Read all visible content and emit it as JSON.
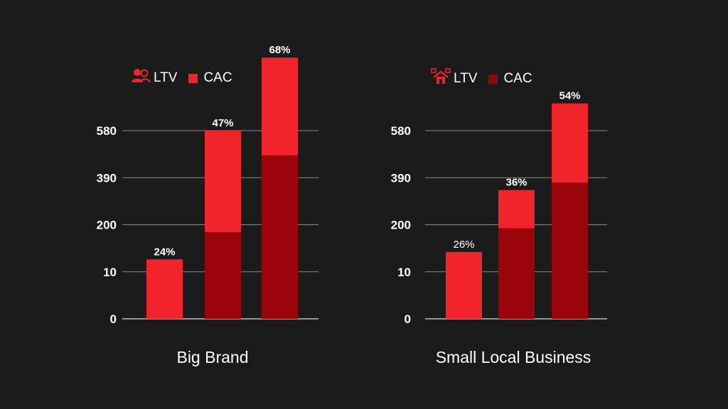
{
  "colors": {
    "background": "#1b1b1c",
    "ltv": "#f0242a",
    "cac": "#9b0409",
    "grid": "#8a8a8a",
    "text": "#ffffff"
  },
  "panels": [
    {
      "title": "Big Brand",
      "legend": [
        {
          "label": "LTV",
          "icon": "users-icon"
        },
        {
          "label": "CAC",
          "icon": "square-swatch"
        }
      ]
    },
    {
      "title": "Small Local Business",
      "legend": [
        {
          "label": "LTV",
          "icon": "home-network-icon"
        },
        {
          "label": "CAC",
          "icon": "square-swatch"
        }
      ]
    }
  ],
  "chart_data": [
    {
      "type": "bar",
      "stacked": true,
      "title": "Big Brand",
      "yticks": [
        "0",
        "10",
        "200",
        "390",
        "580"
      ],
      "ytick_values": [
        0,
        10,
        200,
        390,
        580
      ],
      "series": [
        {
          "name": "CAC",
          "values": [
            0,
            170,
            480
          ]
        },
        {
          "name": "LTV",
          "values": [
            60,
            410,
            395
          ]
        }
      ],
      "totals": [
        60,
        580,
        875
      ],
      "data_labels": [
        "24%",
        "47%",
        "68%"
      ],
      "grid": true,
      "legend_position": "top"
    },
    {
      "type": "bar",
      "stacked": true,
      "title": "Small Local Business",
      "yticks": [
        "0",
        "10",
        "200",
        "390",
        "580"
      ],
      "ytick_values": [
        0,
        10,
        200,
        390,
        580
      ],
      "series": [
        {
          "name": "CAC",
          "values": [
            0,
            185,
            370
          ]
        },
        {
          "name": "LTV",
          "values": [
            90,
            155,
            320
          ]
        }
      ],
      "totals": [
        90,
        340,
        690
      ],
      "data_labels": [
        "26%",
        "36%",
        "54%"
      ],
      "grid": true,
      "legend_position": "top"
    }
  ]
}
